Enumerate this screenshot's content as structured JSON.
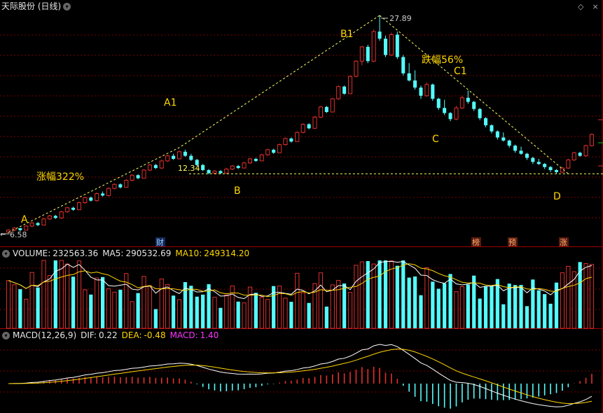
{
  "title": "天际股份 (日线)",
  "title_icon": "chevron-down-icon",
  "corner_icon": "diamond-icon",
  "colors": {
    "up": "#e0312e",
    "down": "#54fcfc",
    "dotted_line": "#ffff66",
    "annotation": "#ffd700",
    "grid": "#7a0000",
    "divider": "#a00000",
    "white_line": "#ffffff",
    "yellow_line": "#ffd700",
    "tag_bg": "#5a1a0f",
    "tag_text": "#ffb070",
    "tag_blue_bg": "#12285a",
    "tag_blue_text": "#9fd0ff"
  },
  "main_chart": {
    "price_low_label": "6.58",
    "price_high_label": "27.89",
    "level_label": "12.34",
    "annotations": [
      {
        "id": "A",
        "text": "A"
      },
      {
        "id": "A1",
        "text": "A1"
      },
      {
        "id": "B",
        "text": "B"
      },
      {
        "id": "B1",
        "text": "B1"
      },
      {
        "id": "C",
        "text": "C"
      },
      {
        "id": "C1",
        "text": "C1"
      },
      {
        "id": "D",
        "text": "D"
      },
      {
        "id": "rise",
        "text": "涨幅322%"
      },
      {
        "id": "fall",
        "text": "跌幅56%"
      }
    ],
    "tags": [
      {
        "id": "cai",
        "text": "财"
      },
      {
        "id": "bang",
        "text": "榜"
      },
      {
        "id": "yu",
        "text": "预"
      },
      {
        "id": "zhang",
        "text": "涨"
      }
    ]
  },
  "volume_panel": {
    "name": "VOLUME:",
    "value": "232563.36",
    "ma5_label": "MA5:",
    "ma5_value": "290532.69",
    "ma10_label": "MA10:",
    "ma10_value": "249314.20"
  },
  "macd_panel": {
    "name": "MACD(12,26,9)",
    "dif_label": "DIF:",
    "dif_value": "0.22",
    "dea_label": "DEA:",
    "dea_value": "-0.48",
    "macd_label": "MACD:",
    "macd_value": "1.40"
  },
  "chart_data": {
    "type": "candlestick",
    "title": "天际股份 (日线)",
    "y_range": [
      6.58,
      27.89
    ],
    "key_points": [
      {
        "label": "A",
        "price": 6.58
      },
      {
        "label": "A1",
        "price": 14.5
      },
      {
        "label": "B",
        "price": 12.34
      },
      {
        "label": "B1",
        "price": 27.89
      },
      {
        "label": "C",
        "price": 17.5
      },
      {
        "label": "C1",
        "price": 20.0
      },
      {
        "label": "D",
        "price": 12.34
      }
    ],
    "rise_pct": "322%",
    "fall_pct": "56%",
    "volume": {
      "value": 232563.36,
      "ma5": 290532.69,
      "ma10": 249314.2
    },
    "macd": {
      "params": [
        12,
        26,
        9
      ],
      "dif": 0.22,
      "dea": -0.48,
      "macd": 1.4
    },
    "candles_estimated": [
      [
        6.6,
        6.9,
        6.5,
        6.8
      ],
      [
        6.8,
        7.1,
        6.7,
        7.0
      ],
      [
        7.0,
        7.0,
        6.7,
        6.8
      ],
      [
        6.8,
        7.3,
        6.8,
        7.2
      ],
      [
        7.2,
        7.6,
        7.1,
        7.5
      ],
      [
        7.5,
        7.6,
        7.2,
        7.3
      ],
      [
        7.3,
        8.0,
        7.3,
        7.9
      ],
      [
        7.9,
        8.3,
        7.8,
        8.2
      ],
      [
        8.2,
        8.3,
        7.9,
        8.0
      ],
      [
        8.0,
        8.7,
        7.9,
        8.6
      ],
      [
        8.6,
        9.1,
        8.5,
        9.0
      ],
      [
        9.0,
        9.1,
        8.7,
        8.8
      ],
      [
        8.8,
        9.6,
        8.8,
        9.5
      ],
      [
        9.5,
        10.1,
        9.4,
        10.0
      ],
      [
        10.0,
        10.1,
        9.6,
        9.7
      ],
      [
        9.7,
        10.5,
        9.6,
        10.4
      ],
      [
        10.4,
        10.6,
        10.1,
        10.2
      ],
      [
        10.2,
        11.0,
        10.1,
        10.9
      ],
      [
        10.9,
        11.4,
        10.8,
        11.3
      ],
      [
        11.3,
        11.4,
        10.9,
        11.0
      ],
      [
        11.0,
        11.8,
        11.0,
        11.7
      ],
      [
        11.7,
        12.3,
        11.6,
        12.2
      ],
      [
        12.2,
        12.3,
        11.8,
        11.9
      ],
      [
        11.9,
        12.8,
        11.9,
        12.7
      ],
      [
        12.7,
        13.3,
        12.6,
        13.2
      ],
      [
        13.2,
        13.3,
        12.8,
        12.9
      ],
      [
        12.9,
        13.7,
        12.8,
        13.6
      ],
      [
        13.6,
        14.2,
        13.5,
        14.1
      ],
      [
        14.1,
        14.3,
        13.7,
        13.8
      ],
      [
        13.8,
        14.6,
        13.8,
        14.5
      ],
      [
        14.5,
        14.7,
        14.0,
        14.1
      ],
      [
        14.1,
        14.3,
        13.6,
        13.7
      ],
      [
        13.7,
        13.8,
        13.1,
        13.2
      ],
      [
        13.2,
        13.3,
        12.6,
        12.7
      ],
      [
        12.7,
        12.8,
        12.3,
        12.4
      ],
      [
        12.4,
        12.7,
        12.3,
        12.6
      ],
      [
        12.6,
        12.7,
        12.3,
        12.4
      ],
      [
        12.4,
        12.9,
        12.4,
        12.8
      ],
      [
        12.8,
        13.2,
        12.7,
        13.1
      ],
      [
        13.1,
        13.2,
        12.8,
        12.9
      ],
      [
        12.9,
        13.5,
        12.9,
        13.4
      ],
      [
        13.4,
        13.9,
        13.3,
        13.8
      ],
      [
        13.8,
        13.9,
        13.5,
        13.6
      ],
      [
        13.6,
        14.3,
        13.6,
        14.2
      ],
      [
        14.2,
        14.8,
        14.1,
        14.7
      ],
      [
        14.7,
        14.8,
        14.3,
        14.4
      ],
      [
        14.4,
        15.3,
        14.4,
        15.2
      ],
      [
        15.2,
        15.9,
        15.1,
        15.8
      ],
      [
        15.8,
        15.9,
        15.4,
        15.5
      ],
      [
        15.5,
        16.5,
        15.5,
        16.4
      ],
      [
        16.4,
        17.3,
        16.3,
        17.2
      ],
      [
        17.2,
        17.3,
        16.7,
        16.8
      ],
      [
        16.8,
        18.0,
        16.8,
        17.9
      ],
      [
        17.9,
        19.0,
        17.8,
        18.9
      ],
      [
        18.9,
        19.0,
        18.3,
        18.4
      ],
      [
        18.4,
        19.8,
        18.4,
        19.7
      ],
      [
        19.7,
        21.0,
        19.6,
        20.9
      ],
      [
        20.9,
        21.0,
        20.1,
        20.2
      ],
      [
        20.2,
        22.0,
        20.2,
        21.9
      ],
      [
        21.9,
        23.5,
        21.8,
        23.4
      ],
      [
        23.4,
        24.9,
        23.0,
        24.8
      ],
      [
        24.8,
        25.0,
        23.2,
        23.4
      ],
      [
        23.4,
        26.5,
        23.3,
        26.3
      ],
      [
        26.3,
        27.89,
        25.4,
        25.6
      ],
      [
        25.6,
        25.9,
        23.8,
        24.0
      ],
      [
        24.0,
        26.2,
        23.9,
        26.0
      ],
      [
        26.0,
        26.3,
        23.6,
        23.8
      ],
      [
        23.8,
        24.0,
        22.0,
        22.2
      ],
      [
        22.2,
        23.2,
        21.4,
        21.5
      ],
      [
        21.5,
        22.5,
        20.6,
        20.8
      ],
      [
        20.8,
        21.0,
        19.7,
        20.0
      ],
      [
        20.0,
        21.3,
        19.9,
        21.1
      ],
      [
        21.1,
        21.2,
        19.5,
        19.7
      ],
      [
        19.7,
        19.8,
        18.6,
        18.8
      ],
      [
        18.8,
        19.6,
        18.1,
        18.3
      ],
      [
        18.3,
        18.4,
        17.5,
        17.7
      ],
      [
        17.7,
        19.0,
        17.6,
        18.8
      ],
      [
        18.8,
        20.0,
        18.7,
        19.8
      ],
      [
        19.8,
        20.5,
        19.2,
        19.4
      ],
      [
        19.4,
        19.5,
        18.5,
        18.7
      ],
      [
        18.7,
        18.8,
        17.6,
        17.8
      ],
      [
        17.8,
        17.9,
        16.9,
        17.1
      ],
      [
        17.1,
        17.2,
        16.3,
        16.5
      ],
      [
        16.5,
        16.6,
        15.7,
        15.9
      ],
      [
        15.9,
        16.4,
        15.5,
        15.6
      ],
      [
        15.6,
        15.7,
        14.9,
        15.1
      ],
      [
        15.1,
        15.2,
        14.4,
        14.6
      ],
      [
        14.6,
        15.0,
        14.2,
        14.3
      ],
      [
        14.3,
        14.4,
        13.7,
        13.9
      ],
      [
        13.9,
        14.0,
        13.3,
        13.5
      ],
      [
        13.5,
        13.8,
        13.2,
        13.3
      ],
      [
        13.3,
        13.4,
        12.8,
        13.0
      ],
      [
        13.0,
        13.1,
        12.5,
        12.7
      ],
      [
        12.7,
        12.8,
        12.34,
        12.5
      ],
      [
        12.5,
        13.0,
        12.4,
        12.9
      ],
      [
        12.9,
        13.8,
        12.8,
        13.7
      ],
      [
        13.7,
        14.5,
        13.6,
        14.4
      ],
      [
        14.4,
        14.5,
        14.0,
        14.1
      ],
      [
        14.1,
        15.2,
        14.0,
        15.1
      ],
      [
        15.1,
        16.3,
        15.0,
        16.2
      ]
    ]
  }
}
